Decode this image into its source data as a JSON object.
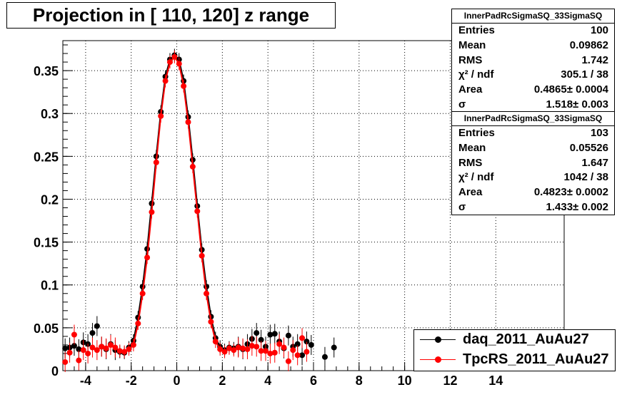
{
  "title": "Projection in [ 110, 120] z range",
  "colors": {
    "series_a": "#000000",
    "series_b": "#ff0000",
    "grid": "#000000"
  },
  "stats": [
    {
      "title": "InnerPadRcSigmaSQ_33SigmaSQ",
      "rows": [
        {
          "label": "Entries",
          "value": "100"
        },
        {
          "label": "Mean",
          "value": "0.09862"
        },
        {
          "label": "RMS",
          "value": "1.742"
        },
        {
          "label": "χ² / ndf",
          "value": "305.1 / 38"
        },
        {
          "label": "Area",
          "value": "0.4865± 0.0004"
        },
        {
          "label": "σ",
          "value": "1.518± 0.003"
        }
      ]
    },
    {
      "title": "InnerPadRcSigmaSQ_33SigmaSQ",
      "rows": [
        {
          "label": "Entries",
          "value": "103"
        },
        {
          "label": "Mean",
          "value": "0.05526"
        },
        {
          "label": "RMS",
          "value": "1.647"
        },
        {
          "label": "χ² / ndf",
          "value": "1042 / 38"
        },
        {
          "label": "Area",
          "value": "0.4823± 0.0002"
        },
        {
          "label": "σ",
          "value": "1.433± 0.002"
        }
      ]
    }
  ],
  "chart_data": {
    "type": "scatter",
    "title": "Projection in [ 110, 120] z range",
    "xlim": [
      -5,
      17
    ],
    "ylim": [
      0,
      0.385
    ],
    "grid": true,
    "legend_position": "bottom-right",
    "x_ticks": [
      "-4",
      "-2",
      "0",
      "2",
      "4",
      "6",
      "8",
      "10",
      "12",
      "14"
    ],
    "y_ticks": [
      "0",
      "0.05",
      "0.1",
      "0.15",
      "0.2",
      "0.25",
      "0.3",
      "0.35"
    ],
    "series": [
      {
        "name": "daq_2011_AuAu27",
        "color": "#000000",
        "x": [
          -4.9,
          -4.7,
          -4.5,
          -4.3,
          -4.1,
          -3.9,
          -3.7,
          -3.5,
          -3.3,
          -3.1,
          -2.9,
          -2.7,
          -2.5,
          -2.3,
          -2.1,
          -1.9,
          -1.7,
          -1.5,
          -1.3,
          -1.1,
          -0.9,
          -0.7,
          -0.5,
          -0.3,
          -0.1,
          0.1,
          0.3,
          0.5,
          0.7,
          0.9,
          1.1,
          1.3,
          1.5,
          1.7,
          1.9,
          2.1,
          2.3,
          2.5,
          2.7,
          2.9,
          3.1,
          3.3,
          3.5,
          3.7,
          3.9,
          4.1,
          4.3,
          4.5,
          4.7,
          4.9,
          5.1,
          5.3,
          5.5,
          5.7,
          5.9,
          6.5,
          6.9
        ],
        "y": [
          0.026,
          0.027,
          0.029,
          0.025,
          0.033,
          0.031,
          0.044,
          0.052,
          0.028,
          0.025,
          0.031,
          0.024,
          0.022,
          0.021,
          0.027,
          0.035,
          0.062,
          0.098,
          0.142,
          0.195,
          0.25,
          0.302,
          0.343,
          0.363,
          0.368,
          0.363,
          0.338,
          0.296,
          0.246,
          0.192,
          0.141,
          0.098,
          0.063,
          0.038,
          0.028,
          0.024,
          0.027,
          0.026,
          0.028,
          0.025,
          0.031,
          0.037,
          0.044,
          0.036,
          0.028,
          0.042,
          0.043,
          0.034,
          0.026,
          0.041,
          0.028,
          0.031,
          0.018,
          0.034,
          0.03,
          0.016,
          0.027
        ]
      },
      {
        "name": "TpcRS_2011_AuAu27",
        "color": "#ff0000",
        "x": [
          -4.9,
          -4.7,
          -4.5,
          -4.3,
          -4.1,
          -3.9,
          -3.7,
          -3.5,
          -3.3,
          -3.1,
          -2.9,
          -2.7,
          -2.5,
          -2.3,
          -2.1,
          -1.9,
          -1.7,
          -1.5,
          -1.3,
          -1.1,
          -0.9,
          -0.7,
          -0.5,
          -0.3,
          -0.1,
          0.1,
          0.3,
          0.5,
          0.7,
          0.9,
          1.1,
          1.3,
          1.5,
          1.7,
          1.9,
          2.1,
          2.3,
          2.5,
          2.7,
          2.9,
          3.1,
          3.3,
          3.5,
          3.7,
          3.9,
          4.1,
          4.3,
          4.5,
          4.7,
          4.9,
          5.1,
          5.3,
          5.5,
          5.7
        ],
        "y": [
          0.01,
          0.021,
          0.042,
          0.012,
          0.024,
          0.02,
          0.027,
          0.024,
          0.028,
          0.026,
          0.03,
          0.027,
          0.023,
          0.022,
          0.025,
          0.03,
          0.055,
          0.09,
          0.132,
          0.185,
          0.243,
          0.297,
          0.338,
          0.36,
          0.366,
          0.358,
          0.332,
          0.29,
          0.238,
          0.186,
          0.134,
          0.09,
          0.057,
          0.034,
          0.025,
          0.022,
          0.026,
          0.024,
          0.027,
          0.026,
          0.025,
          0.029,
          0.028,
          0.023,
          0.023,
          0.02,
          0.021,
          0.031,
          0.027,
          0.011,
          0.024,
          0.018,
          0.038,
          0.022
        ]
      }
    ]
  },
  "legend": [
    {
      "label": "daq_2011_AuAu27",
      "color": "#000000"
    },
    {
      "label": "TpcRS_2011_AuAu27",
      "color": "#ff0000"
    }
  ]
}
